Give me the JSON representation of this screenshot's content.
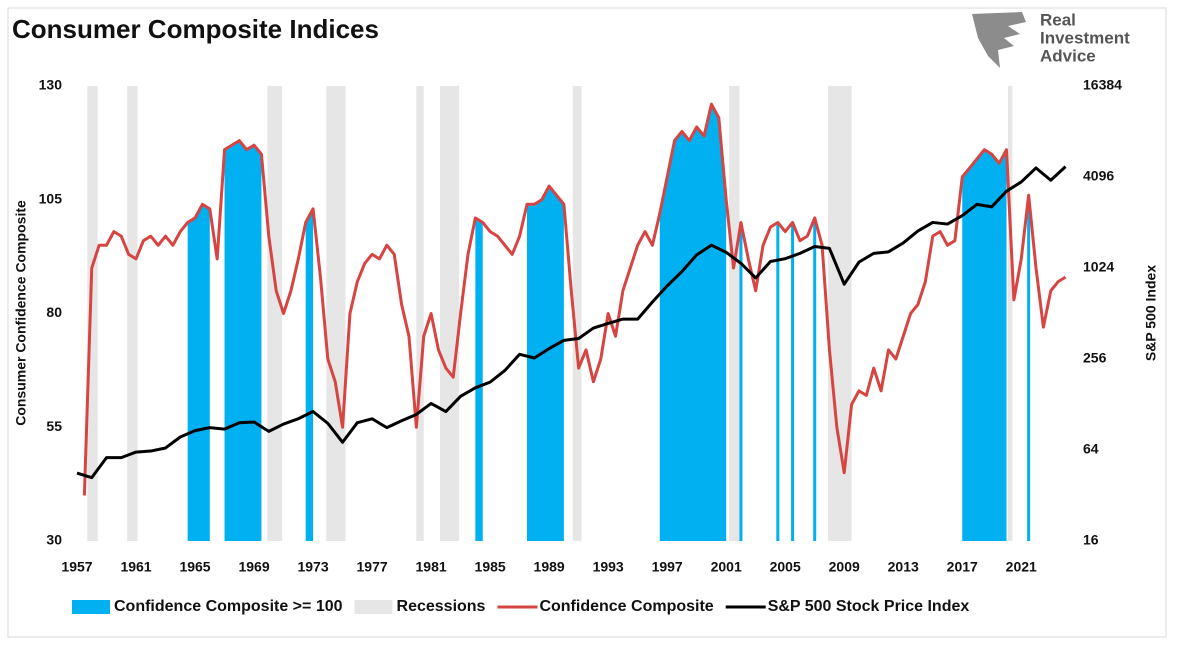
{
  "chart_data": {
    "type": "line",
    "title": "Consumer Composite Indices",
    "logo": [
      "Real",
      "Investment",
      "Advice"
    ],
    "y_label": "Consumer Confidence Composite",
    "y2_label": "S&P 500 Index",
    "xlim": [
      1957,
      2024.1
    ],
    "xticks": [
      1957,
      1961,
      1965,
      1969,
      1973,
      1977,
      1981,
      1985,
      1989,
      1993,
      1997,
      2001,
      2005,
      2009,
      2013,
      2017,
      2021
    ],
    "ylim": [
      30,
      130
    ],
    "yticks": [
      30,
      55,
      80,
      105,
      130
    ],
    "y2lim": [
      16,
      16384
    ],
    "y2ticks": [
      16,
      64,
      256,
      1024,
      4096,
      16384
    ],
    "y2_log": true,
    "grid": false,
    "legend": "bottom",
    "x": [
      1957.5,
      1958,
      1958.5,
      1959,
      1959.5,
      1960,
      1960.5,
      1961,
      1961.5,
      1962,
      1962.5,
      1963,
      1963.5,
      1964,
      1964.5,
      1965,
      1965.5,
      1966,
      1966.5,
      1967,
      1967.5,
      1968,
      1968.5,
      1969,
      1969.5,
      1970,
      1970.5,
      1971,
      1971.5,
      1972,
      1972.5,
      1973,
      1973.5,
      1974,
      1974.5,
      1975,
      1975.5,
      1976,
      1976.5,
      1977,
      1977.5,
      1978,
      1978.5,
      1979,
      1979.5,
      1980,
      1980.5,
      1981,
      1981.5,
      1982,
      1982.5,
      1983,
      1983.5,
      1984,
      1984.5,
      1985,
      1985.5,
      1986,
      1986.5,
      1987,
      1987.5,
      1988,
      1988.5,
      1989,
      1989.5,
      1990,
      1990.5,
      1991,
      1991.5,
      1992,
      1992.5,
      1993,
      1993.5,
      1994,
      1994.5,
      1995,
      1995.5,
      1996,
      1996.5,
      1997,
      1997.5,
      1998,
      1998.5,
      1999,
      1999.5,
      2000,
      2000.5,
      2001,
      2001.5,
      2002,
      2002.5,
      2003,
      2003.5,
      2004,
      2004.5,
      2005,
      2005.5,
      2006,
      2006.5,
      2007,
      2007.5,
      2008,
      2008.5,
      2009,
      2009.5,
      2010,
      2010.5,
      2011,
      2011.5,
      2012,
      2012.5,
      2013,
      2013.5,
      2014,
      2014.5,
      2015,
      2015.5,
      2016,
      2016.5,
      2017,
      2017.5,
      2018,
      2018.5,
      2019,
      2019.5,
      2020,
      2020.5,
      2021,
      2021.5,
      2022,
      2022.5,
      2023,
      2023.5,
      2024
    ],
    "series": [
      {
        "name": "Confidence Composite >= 100",
        "type": "area",
        "color": "#00b0f0",
        "values": [
          null,
          null,
          null,
          null,
          null,
          null,
          null,
          null,
          null,
          null,
          null,
          null,
          null,
          null,
          100,
          101,
          104,
          103,
          null,
          116,
          117,
          118,
          116,
          117,
          115,
          null,
          null,
          null,
          null,
          null,
          100,
          103,
          null,
          null,
          null,
          null,
          null,
          null,
          null,
          null,
          null,
          null,
          null,
          null,
          null,
          null,
          null,
          null,
          null,
          null,
          null,
          null,
          null,
          101,
          100,
          null,
          null,
          null,
          null,
          null,
          104,
          104,
          105,
          108,
          106,
          104,
          null,
          null,
          null,
          null,
          null,
          null,
          null,
          null,
          null,
          null,
          null,
          null,
          102,
          110,
          118,
          120,
          118,
          121,
          119,
          126,
          123,
          105,
          null,
          100,
          null,
          null,
          null,
          null,
          100,
          null,
          100,
          null,
          null,
          101,
          null,
          null,
          null,
          null,
          null,
          null,
          null,
          null,
          null,
          null,
          null,
          null,
          null,
          null,
          null,
          null,
          null,
          null,
          null,
          110,
          112,
          114,
          116,
          115,
          113,
          116,
          null,
          null,
          106,
          null,
          null,
          null,
          null,
          null
        ]
      },
      {
        "name": "Recessions",
        "type": "span",
        "color": "#e6e6e6",
        "spans": [
          [
            1957.7,
            1958.4
          ],
          [
            1960.4,
            1961.1
          ],
          [
            1969.9,
            1970.9
          ],
          [
            1973.9,
            1975.2
          ],
          [
            1980.0,
            1980.5
          ],
          [
            1981.6,
            1982.9
          ],
          [
            1990.6,
            1991.2
          ],
          [
            2001.2,
            2001.9
          ],
          [
            2007.9,
            2009.5
          ],
          [
            2020.1,
            2020.4
          ]
        ]
      },
      {
        "name": "Confidence Composite",
        "type": "line",
        "color": "#d64541",
        "values": [
          40,
          90,
          95,
          95,
          98,
          97,
          93,
          92,
          96,
          97,
          95,
          97,
          95,
          98,
          100,
          101,
          104,
          103,
          92,
          116,
          117,
          118,
          116,
          117,
          115,
          97,
          85,
          80,
          85,
          92,
          100,
          103,
          88,
          70,
          65,
          55,
          80,
          87,
          91,
          93,
          92,
          95,
          93,
          82,
          75,
          55,
          75,
          80,
          72,
          68,
          66,
          80,
          93,
          101,
          100,
          98,
          97,
          95,
          93,
          97,
          104,
          104,
          105,
          108,
          106,
          104,
          85,
          68,
          72,
          65,
          70,
          80,
          75,
          85,
          90,
          95,
          98,
          95,
          102,
          110,
          118,
          120,
          118,
          121,
          119,
          126,
          123,
          105,
          90,
          100,
          92,
          85,
          95,
          99,
          100,
          98,
          100,
          96,
          97,
          101,
          95,
          72,
          55,
          45,
          60,
          63,
          62,
          68,
          63,
          72,
          70,
          75,
          80,
          82,
          87,
          97,
          98,
          95,
          96,
          110,
          112,
          114,
          116,
          115,
          113,
          116,
          83,
          92,
          106,
          90,
          77,
          85,
          87,
          88
        ]
      },
      {
        "name": "S&P 500 Stock Price Index",
        "type": "line",
        "color": "#000000",
        "axis": "y2",
        "x": [
          1957,
          1958,
          1959,
          1960,
          1961,
          1962,
          1963,
          1964,
          1965,
          1966,
          1967,
          1968,
          1969,
          1970,
          1971,
          1972,
          1973,
          1974,
          1975,
          1976,
          1977,
          1978,
          1979,
          1980,
          1981,
          1982,
          1983,
          1984,
          1985,
          1986,
          1987,
          1988,
          1989,
          1990,
          1991,
          1992,
          1993,
          1994,
          1995,
          1996,
          1997,
          1998,
          1999,
          2000,
          2001,
          2002,
          2003,
          2004,
          2005,
          2006,
          2007,
          2008,
          2009,
          2010,
          2011,
          2012,
          2013,
          2014,
          2015,
          2016,
          2017,
          2018,
          2019,
          2020,
          2021,
          2022,
          2023,
          2024
        ],
        "values": [
          45,
          42,
          57,
          57,
          62,
          63,
          66,
          78,
          86,
          90,
          88,
          97,
          98,
          85,
          95,
          103,
          115,
          96,
          72,
          97,
          103,
          90,
          100,
          110,
          130,
          115,
          145,
          165,
          180,
          215,
          275,
          260,
          300,
          340,
          350,
          410,
          440,
          470,
          470,
          610,
          780,
          970,
          1250,
          1450,
          1300,
          1100,
          880,
          1130,
          1180,
          1280,
          1420,
          1380,
          800,
          1120,
          1280,
          1310,
          1500,
          1800,
          2050,
          2000,
          2270,
          2700,
          2600,
          3300,
          3800,
          4700,
          3900,
          4800
        ]
      }
    ]
  }
}
